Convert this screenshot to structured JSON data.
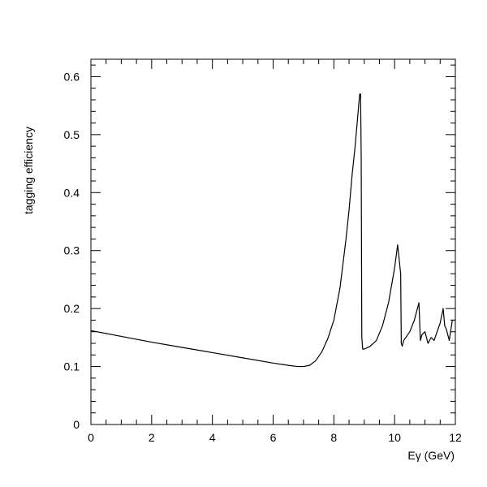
{
  "chart_data": {
    "type": "line",
    "title": "",
    "xlabel": "Eγ (GeV)",
    "ylabel": "tagging efficiency",
    "xlim": [
      0,
      12
    ],
    "ylim": [
      0,
      0.63
    ],
    "x_ticks": [
      0,
      2,
      4,
      6,
      8,
      10,
      12
    ],
    "y_ticks": [
      0,
      0.1,
      0.2,
      0.3,
      0.4,
      0.5,
      0.6
    ],
    "x_tick_labels": [
      "0",
      "2",
      "4",
      "6",
      "8",
      "10",
      "12"
    ],
    "y_tick_labels": [
      "0",
      "0.1",
      "0.2",
      "0.3",
      "0.4",
      "0.5",
      "0.6"
    ],
    "grid": false,
    "legend": "none",
    "colors": {
      "line": "#000000",
      "axes": "#000000"
    },
    "series": [
      {
        "x": [
          0.0,
          1.0,
          2.0,
          3.0,
          4.0,
          5.0,
          6.0,
          6.5,
          6.8,
          7.0,
          7.2,
          7.4,
          7.6,
          7.8,
          8.0,
          8.2,
          8.4,
          8.5,
          8.6,
          8.7,
          8.8,
          8.85,
          8.88,
          8.9,
          8.92,
          8.95,
          9.0,
          9.2,
          9.4,
          9.6,
          9.8,
          10.0,
          10.1,
          10.2,
          10.22,
          10.25,
          10.3,
          10.5,
          10.65,
          10.8,
          10.85,
          10.9,
          11.0,
          11.1,
          11.2,
          11.3,
          11.4,
          11.5,
          11.6,
          11.65,
          11.7,
          11.8,
          11.9,
          12.0
        ],
        "y": [
          0.162,
          0.152,
          0.142,
          0.133,
          0.124,
          0.115,
          0.106,
          0.102,
          0.1,
          0.1,
          0.102,
          0.11,
          0.125,
          0.148,
          0.18,
          0.235,
          0.32,
          0.37,
          0.43,
          0.48,
          0.54,
          0.57,
          0.57,
          0.46,
          0.15,
          0.13,
          0.13,
          0.135,
          0.145,
          0.17,
          0.21,
          0.27,
          0.31,
          0.26,
          0.14,
          0.135,
          0.145,
          0.16,
          0.18,
          0.21,
          0.145,
          0.155,
          0.16,
          0.14,
          0.15,
          0.145,
          0.16,
          0.175,
          0.2,
          0.17,
          0.165,
          0.145,
          0.18,
          0.18
        ]
      }
    ]
  }
}
